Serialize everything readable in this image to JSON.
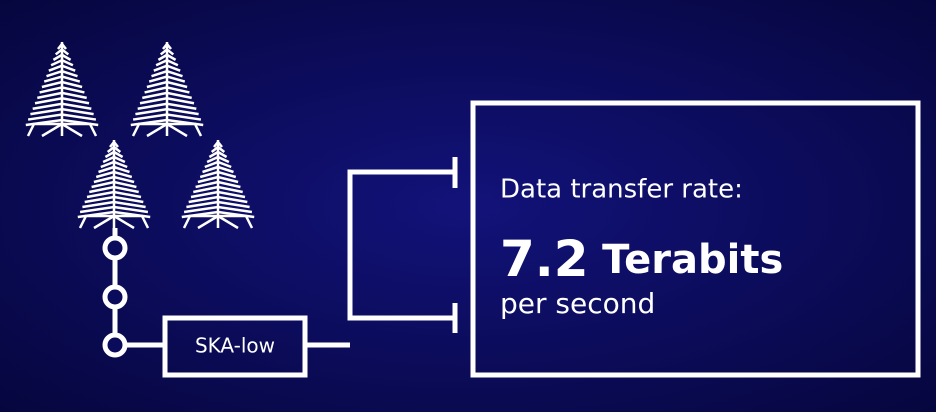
{
  "diagram": {
    "station": {
      "label": "SKA-low"
    },
    "output": {
      "heading": "Data transfer rate:",
      "value": 7.2,
      "unit": "Terabits",
      "per": "per second"
    }
  }
}
